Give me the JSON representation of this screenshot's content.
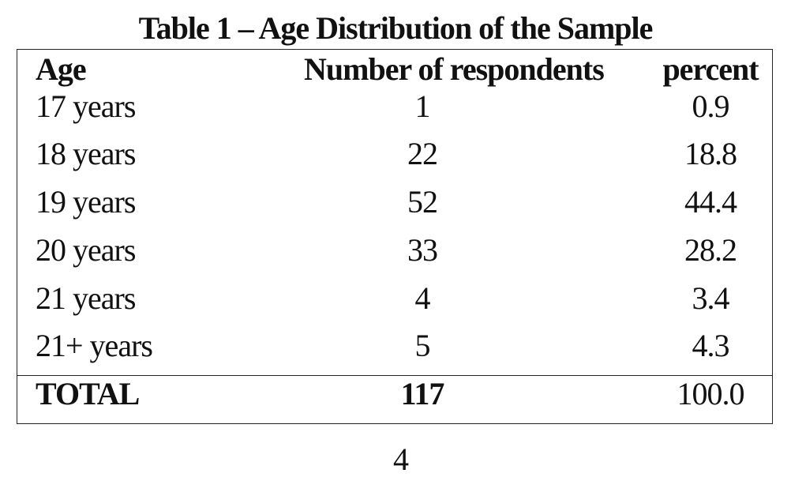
{
  "header": {
    "title": "Table 1 – Age Distribution of the Sample"
  },
  "table": {
    "columns": [
      "Age",
      "Number of respondents",
      "percent"
    ],
    "rows": [
      [
        "17 years",
        "1",
        "0.9"
      ],
      [
        "18 years",
        "22",
        "18.8"
      ],
      [
        "19 years",
        "52",
        "44.4"
      ],
      [
        "20 years",
        "33",
        "28.2"
      ],
      [
        "21 years",
        "4",
        "3.4"
      ],
      [
        "21+ years",
        "5",
        "4.3"
      ]
    ],
    "total": [
      "TOTAL",
      "117",
      "100.0"
    ]
  },
  "footer": {
    "page_number": "4"
  }
}
